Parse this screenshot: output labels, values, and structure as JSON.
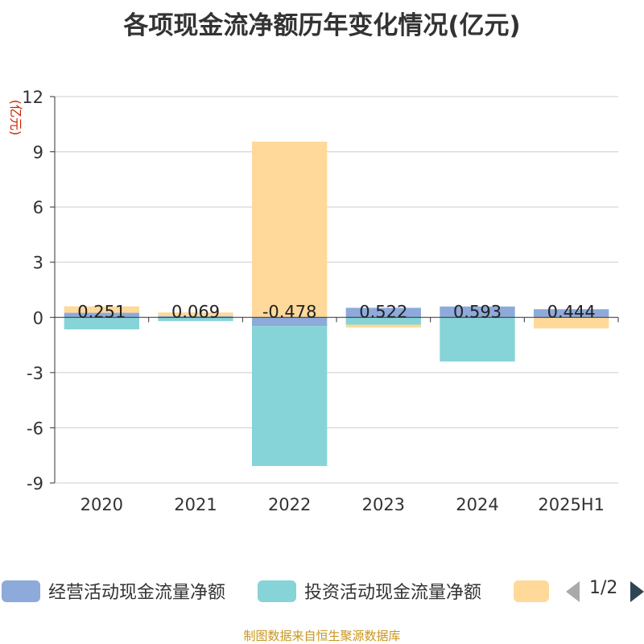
{
  "title": "各项现金流净额历年变化情况(亿元)",
  "source_note": "制图数据来自恒生聚源数据库",
  "legend": {
    "items": [
      {
        "label": "经营活动现金流量净额",
        "color": "#8eaadb"
      },
      {
        "label": "投资活动现金流量净额",
        "color": "#86d4d8"
      },
      {
        "label": "",
        "color": "#ffd99a"
      }
    ],
    "page_indicator": "1/2"
  },
  "chart_data": {
    "type": "bar",
    "stacked": true,
    "title": "各项现金流净额历年变化情况(亿元)",
    "ylabel": "(亿元)",
    "xlabel": "",
    "ylim": [
      -9,
      12
    ],
    "yticks": [
      "12",
      "9",
      "6",
      "3",
      "0",
      "-3",
      "-6",
      "-9"
    ],
    "grid": true,
    "legend_position": "bottom",
    "categories": [
      "2020",
      "2021",
      "2022",
      "2023",
      "2024",
      "2025H1"
    ],
    "series": [
      {
        "name": "经营活动现金流量净额",
        "color": "#8eaadb",
        "values": [
          0.251,
          0.069,
          -0.478,
          0.522,
          0.593,
          0.444
        ],
        "labels": [
          "0.251",
          "0.069",
          "-0.478",
          "0.522",
          "0.593",
          "0.444"
        ]
      },
      {
        "name": "投资活动现金流量净额",
        "color": "#86d4d8",
        "values": [
          -0.65,
          -0.2,
          -7.6,
          -0.4,
          -2.4,
          0
        ]
      },
      {
        "name": "",
        "color": "#ffd99a",
        "values": [
          0.35,
          0.2,
          9.55,
          -0.15,
          0,
          -0.6
        ]
      }
    ]
  }
}
